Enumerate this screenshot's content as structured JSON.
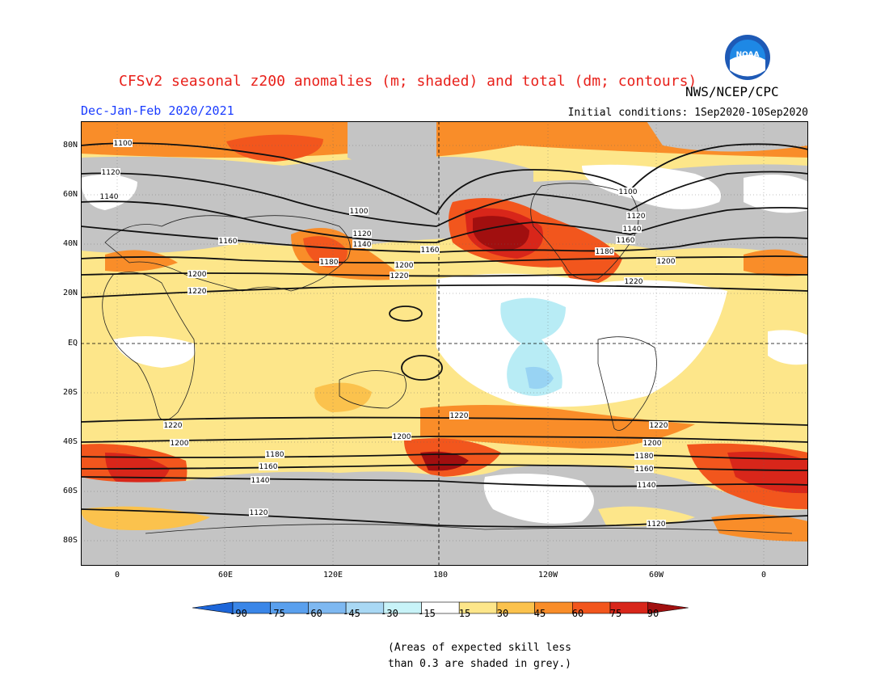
{
  "header": {
    "title": "CFSv2 seasonal z200 anomalies (m; shaded) and total (dm; contours)",
    "agency": "NWS/NCEP/CPC",
    "season": "Dec-Jan-Feb 2020/2021",
    "initial_conditions": "Initial conditions: 1Sep2020-10Sep2020",
    "logo_text": "NOAA"
  },
  "map": {
    "lat_labels": [
      "80N",
      "60N",
      "40N",
      "20N",
      "EQ",
      "20S",
      "40S",
      "60S",
      "80S"
    ],
    "lon_labels": [
      "0",
      "60E",
      "120E",
      "180",
      "120W",
      "60W",
      "0"
    ],
    "contour_labels": [
      "1100",
      "1120",
      "1140",
      "1160",
      "1180",
      "1200",
      "1220"
    ],
    "colors": {
      "grey": "#c4c4c4",
      "neutral": "#ffffff",
      "pos15": "#fde68a",
      "pos30": "#fbc24d",
      "pos45": "#f98d29",
      "pos60": "#f2561d",
      "pos75": "#d8261a",
      "pos90": "#a10f0f",
      "neg15": "#b8ecf5",
      "neg30": "#98d3f3"
    }
  },
  "colorbar": {
    "labels": [
      "-90",
      "-75",
      "-60",
      "-45",
      "-30",
      "-15",
      "15",
      "30",
      "45",
      "60",
      "75",
      "90"
    ],
    "colors": [
      "#1d66d9",
      "#3a86e8",
      "#5aa0ee",
      "#7eb8f1",
      "#a9d8f4",
      "#c8f3f8",
      "#ffffff",
      "#fde68a",
      "#fbc24d",
      "#f98d29",
      "#f2561d",
      "#d8261a",
      "#a10f0f"
    ]
  },
  "footnote": {
    "line1": "(Areas of expected skill less",
    "line2": "than 0.3 are shaded in grey.)"
  }
}
